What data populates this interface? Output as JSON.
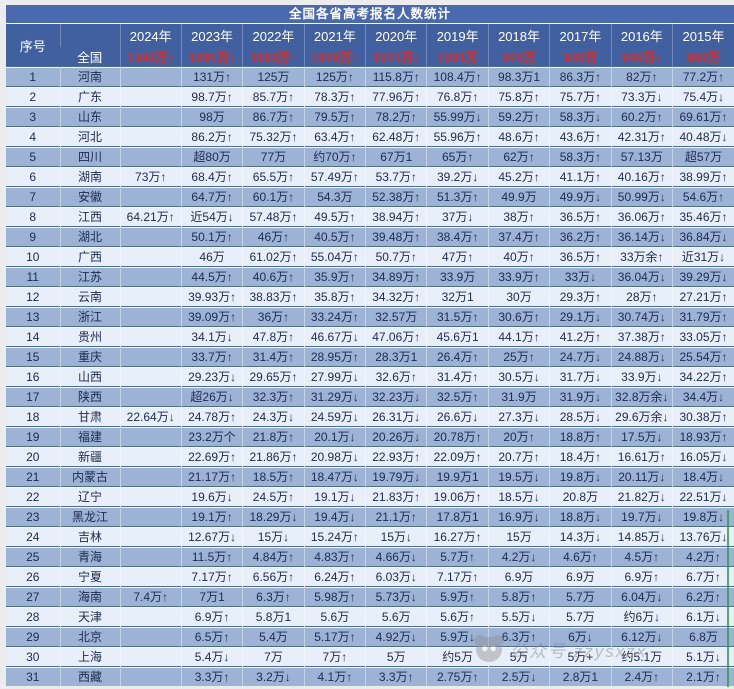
{
  "chart_data": {
    "type": "table",
    "title": "全国各省高考报名人数统计",
    "index_header": "序号",
    "year_columns": [
      "2024年",
      "2023年",
      "2022年",
      "2021年",
      "2020年",
      "2019年",
      "2018年",
      "2017年",
      "2016年",
      "2015年"
    ],
    "national_row": {
      "label": "全国",
      "values": [
        "1342万↑",
        "1291万↑",
        "1193万↑",
        "1078万↑",
        "1071万↑",
        "1031万",
        "975万",
        "940万",
        "940万↓",
        "942万"
      ]
    },
    "rows": [
      {
        "no": "1",
        "province": "河南",
        "values": [
          "",
          "131万↑",
          "125万",
          "125万↑",
          "115.8万↑",
          "108.4万↑",
          "98.3万1",
          "86.3万↑",
          "82万↑",
          "77.2万↑"
        ]
      },
      {
        "no": "2",
        "province": "广东",
        "values": [
          "",
          "98.7万↑",
          "85.7万↑",
          "78.3万↑",
          "77.96万↑",
          "76.8万↑",
          "75.8万↑",
          "75.7万↑",
          "73.3万↓",
          "75.4万↓"
        ]
      },
      {
        "no": "3",
        "province": "山东",
        "values": [
          "",
          "98万",
          "86.7万↑",
          "79.5万↑",
          "78.2万↑",
          "55.99万↓",
          "59.2万↑",
          "58.3万↓",
          "60.2万↑",
          "69.61万↑"
        ]
      },
      {
        "no": "4",
        "province": "河北",
        "values": [
          "",
          "86.2万↑",
          "75.32万↑",
          "63.4万↑",
          "62.48万↑",
          "55.96万↑",
          "48.6万↑",
          "43.6万↑",
          "42.31万↑",
          "40.48万↓"
        ]
      },
      {
        "no": "5",
        "province": "四川",
        "values": [
          "",
          "超80万",
          "77万",
          "约70万↑",
          "67万1",
          "65万↑",
          "62万↑",
          "58.3万↑",
          "57.13万",
          "超57万"
        ]
      },
      {
        "no": "6",
        "province": "湖南",
        "values": [
          "73万↑",
          "68.4万↑",
          "65.5万↑",
          "57.49万↑",
          "53.7万↑",
          "39.2万↓",
          "45.2万↑",
          "41.1万↑",
          "40.16万↑",
          "38.99万↑"
        ]
      },
      {
        "no": "7",
        "province": "安徽",
        "values": [
          "",
          "64.7万↑",
          "60.1万↑",
          "54.3万",
          "52.38万↑",
          "51.3万↑",
          "49.9万",
          "49.9万↓",
          "50.99万↓",
          "54.6万↑"
        ]
      },
      {
        "no": "8",
        "province": "江西",
        "values": [
          "64.21万↑",
          "近54万↓",
          "57.48万↑",
          "49.5万↑",
          "38.94万↑",
          "37万↓",
          "38万↑",
          "36.5万↑",
          "36.06万↑",
          "35.46万↑"
        ]
      },
      {
        "no": "9",
        "province": "湖北",
        "values": [
          "",
          "50.1万↑",
          "46万↑",
          "40.5万↑",
          "39.48万↑",
          "38.4万↑",
          "37.4万↑",
          "36.2万↑",
          "36.14万↓",
          "36.84万↓"
        ]
      },
      {
        "no": "10",
        "province": "广西",
        "values": [
          "",
          "46万",
          "61.02万↑",
          "55.04万↑",
          "50.7万↑",
          "47万↑",
          "40万↑",
          "36.5万↑",
          "33万余↑",
          "近31万↓"
        ]
      },
      {
        "no": "11",
        "province": "江苏",
        "values": [
          "",
          "44.5万↑",
          "40.6万↑",
          "35.9万↑",
          "34.89万↑",
          "33.9万",
          "33.9万↑",
          "33万↓",
          "36.04万↓",
          "39.29万↓"
        ]
      },
      {
        "no": "12",
        "province": "云南",
        "values": [
          "",
          "39.93万↑",
          "38.83万↑",
          "35.8万↑",
          "34.32万↑",
          "32万1",
          "30万",
          "29.3万↑",
          "28万↑",
          "27.21万↑"
        ]
      },
      {
        "no": "13",
        "province": "浙江",
        "values": [
          "",
          "39.09万↑",
          "36万↑",
          "33.24万↑",
          "32.57万",
          "31.5万↑",
          "30.6万↑",
          "29.1万↓",
          "30.74万↓",
          "31.79万↑"
        ]
      },
      {
        "no": "14",
        "province": "贵州",
        "values": [
          "",
          "34.1万↓",
          "47.8万↑",
          "46.67万↓",
          "47.06万↑",
          "45.6万1",
          "44.1万↑",
          "41.2万↑",
          "37.38万↑",
          "33.05万↑"
        ]
      },
      {
        "no": "15",
        "province": "重庆",
        "values": [
          "",
          "33.7万↑",
          "31.4万↑",
          "28.95万↑",
          "28.3万1",
          "26.4万↑",
          "25万↑",
          "24.7万↓",
          "24.88万↓",
          "25.54万↑"
        ]
      },
      {
        "no": "16",
        "province": "山西",
        "values": [
          "",
          "29.23万↓",
          "29.65万↑",
          "27.99万↓",
          "32.6万↑",
          "31.4万↑",
          "30.5万↓",
          "31.7万↓",
          "33.9万↓",
          "34.22万↑"
        ]
      },
      {
        "no": "17",
        "province": "陕西",
        "values": [
          "",
          "超26万↓",
          "32.3万↑",
          "31.29万↓",
          "32.23万↓",
          "32.5万↑",
          "31.9万",
          "31.9万↓",
          "32.8万余↓",
          "34.4万↓"
        ]
      },
      {
        "no": "18",
        "province": "甘肃",
        "values": [
          "22.64万↓",
          "24.78万↑",
          "24.3万↓",
          "24.59万↓",
          "26.31万↓",
          "26.6万↓",
          "27.3万↓",
          "28.5万↓",
          "29.6万余↓",
          "30.38万↑"
        ]
      },
      {
        "no": "19",
        "province": "福建",
        "values": [
          "",
          "23.2万个",
          "21.8万↑",
          "20.1万↓",
          "20.26万↓",
          "20.78万↑",
          "20万↑",
          "18.8万↑",
          "17.5万↓",
          "18.93万↑"
        ]
      },
      {
        "no": "20",
        "province": "新疆",
        "values": [
          "",
          "22.69万↑",
          "21.86万↑",
          "20.98万↓",
          "22.93万↑",
          "22.09万↑",
          "20.7万↑",
          "18.4万↑",
          "16.61万↑",
          "16.05万↓"
        ]
      },
      {
        "no": "21",
        "province": "内蒙古",
        "values": [
          "",
          "21.17万↑",
          "18.5万↑",
          "18.47万↓",
          "19.79万↓",
          "19.9万1",
          "19.5万↓",
          "19.8万↓",
          "20.11万↓",
          "18.4万↓"
        ]
      },
      {
        "no": "22",
        "province": "辽宁",
        "values": [
          "",
          "19.6万↓",
          "24.5万↑",
          "19.1万↓",
          "21.83万↑",
          "19.06万↑",
          "18.5万↓",
          "20.8万",
          "21.82万↓",
          "22.51万↓"
        ]
      },
      {
        "no": "23",
        "province": "黑龙江",
        "values": [
          "",
          "19.1万↑",
          "18.29万↓",
          "19.4万↓",
          "21.1万↑",
          "17.8万1",
          "16.9万↓",
          "18.8万↓",
          "19.7万↓",
          "19.8万↓"
        ]
      },
      {
        "no": "24",
        "province": "吉林",
        "values": [
          "",
          "12.67万↓",
          "15万↓",
          "15.24万↑",
          "15万↓",
          "16.27万↑",
          "15万",
          "14.3万↓",
          "14.85万↓",
          "13.76万↓"
        ]
      },
      {
        "no": "25",
        "province": "青海",
        "values": [
          "",
          "11.5万↑",
          "4.84万↑",
          "4.83万↑",
          "4.66万↓",
          "5.7万↑",
          "4.2万↓",
          "4.6万↑",
          "4.5万↑",
          "4.2万↑"
        ]
      },
      {
        "no": "26",
        "province": "宁夏",
        "values": [
          "",
          "7.17万↑",
          "6.56万↑",
          "6.24万↑",
          "6.03万↓",
          "7.17万↑",
          "6.9万",
          "6.9万",
          "6.9万↑",
          "6.7万↑"
        ]
      },
      {
        "no": "27",
        "province": "海南",
        "values": [
          "7.4万↑",
          "7万1",
          "6.3万↑",
          "5.98万↑",
          "5.73万↓",
          "5.9万↑",
          "5.8万↑",
          "5.7万",
          "6.04万↓",
          "6.2万↑"
        ]
      },
      {
        "no": "28",
        "province": "天津",
        "values": [
          "",
          "6.9万↑",
          "5.8万1",
          "5.6万",
          "5.6万",
          "5.6万↑",
          "5.5万↓",
          "5.7万",
          "约6万↓",
          "6.1万↓"
        ]
      },
      {
        "no": "29",
        "province": "北京",
        "values": [
          "",
          "6.5万↑",
          "5.4万",
          "5.17万↑",
          "4.92万↓",
          "5.9万↓",
          "6.3万↑",
          "6万↓",
          "6.12万↓",
          "6.8万"
        ]
      },
      {
        "no": "30",
        "province": "上海",
        "values": [
          "",
          "5.4万↓",
          "7万",
          "7万↑",
          "5万",
          "约5万",
          "5万",
          "5万+",
          "约5.1万",
          "5.1万↓"
        ]
      },
      {
        "no": "31",
        "province": "西藏",
        "values": [
          "",
          "3.3万↑",
          "3.2万↓",
          "4.1万↑",
          "3.3万↑",
          "2.75万↑",
          "2.5万↓",
          "2.8万1",
          "2.4万↑",
          "2.1万↑"
        ]
      }
    ],
    "layout": {
      "legend": "none",
      "grid": "on",
      "row_striping": "dark-light alternating, first data row dark"
    }
  },
  "watermark": {
    "icon": "panda-icon",
    "text": "公众号 zzysxzx"
  },
  "colors": {
    "title_bar": "#4a6ab0",
    "header_band": "#40609f",
    "row_dark": "#9db3d6",
    "row_light": "#e9eff8",
    "national_text": "#e8291c",
    "body_text": "#1c2b4d",
    "grid_line": "#4a69a8",
    "selection_edge_green": "#33a04e"
  }
}
